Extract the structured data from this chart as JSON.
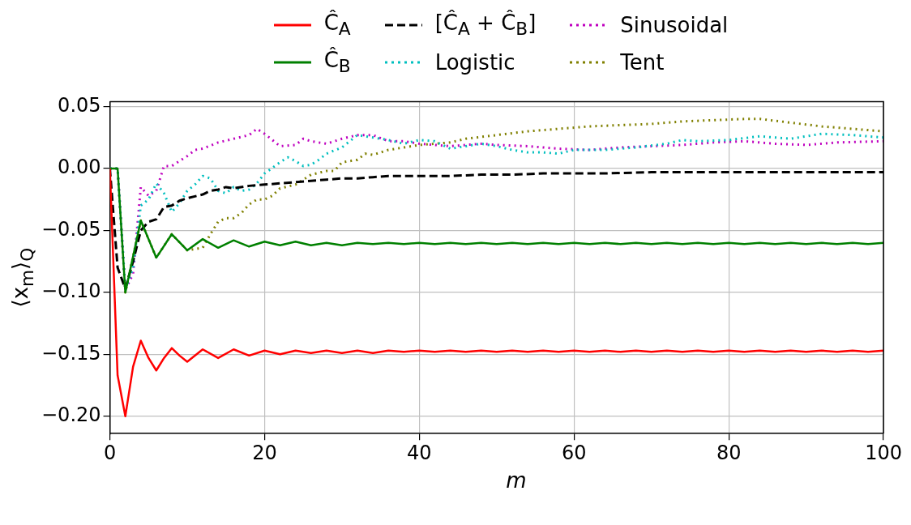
{
  "chart_data": {
    "type": "line",
    "xlabel": "m",
    "ylabel": "⟨x$_{m}$⟩$_{Q}$",
    "xlim": [
      0,
      100
    ],
    "ylim": [
      -0.214,
      0.054
    ],
    "xticks": [
      0,
      20,
      40,
      60,
      80,
      100
    ],
    "yticks": [
      {
        "value": -0.2,
        "label": "−0.20"
      },
      {
        "value": -0.15,
        "label": "−0.15"
      },
      {
        "value": -0.1,
        "label": "−0.10"
      },
      {
        "value": -0.05,
        "label": "−0.05"
      },
      {
        "value": 0,
        "label": "0.00"
      },
      {
        "value": 0.05,
        "label": "0.05"
      }
    ],
    "grid": true,
    "legend": "top",
    "marker": "none",
    "series": [
      {
        "name": "Ĉ$_{A}$",
        "color": "#ff0000",
        "line_style": "solid",
        "x": [
          0,
          1,
          2,
          3,
          4,
          5,
          6,
          7,
          8,
          9,
          10,
          12,
          14,
          16,
          18,
          20,
          22,
          24,
          26,
          28,
          30,
          32,
          34,
          36,
          38,
          40,
          42,
          44,
          46,
          48,
          50,
          52,
          54,
          56,
          58,
          60,
          62,
          64,
          66,
          68,
          70,
          72,
          74,
          76,
          78,
          80,
          82,
          84,
          86,
          88,
          90,
          92,
          94,
          96,
          98,
          100
        ],
        "values": [
          0,
          -0.167,
          -0.2,
          -0.16,
          -0.139,
          -0.153,
          -0.163,
          -0.153,
          -0.145,
          -0.151,
          -0.156,
          -0.146,
          -0.153,
          -0.146,
          -0.151,
          -0.147,
          -0.15,
          -0.147,
          -0.149,
          -0.147,
          -0.149,
          -0.147,
          -0.149,
          -0.147,
          -0.148,
          -0.147,
          -0.148,
          -0.147,
          -0.148,
          -0.147,
          -0.148,
          -0.147,
          -0.148,
          -0.147,
          -0.148,
          -0.147,
          -0.148,
          -0.147,
          -0.148,
          -0.147,
          -0.148,
          -0.147,
          -0.148,
          -0.147,
          -0.148,
          -0.147,
          -0.148,
          -0.147,
          -0.148,
          -0.147,
          -0.148,
          -0.147,
          -0.148,
          -0.147,
          -0.148,
          -0.147
        ]
      },
      {
        "name": "Ĉ$_{B}$",
        "color": "#008000",
        "line_style": "solid",
        "x": [
          0,
          1,
          2,
          4,
          6,
          8,
          10,
          12,
          14,
          16,
          18,
          20,
          22,
          24,
          26,
          28,
          30,
          32,
          34,
          36,
          38,
          40,
          42,
          44,
          46,
          48,
          50,
          52,
          54,
          56,
          58,
          60,
          62,
          64,
          66,
          68,
          70,
          72,
          74,
          76,
          78,
          80,
          82,
          84,
          86,
          88,
          90,
          92,
          94,
          96,
          98,
          100
        ],
        "values": [
          0,
          0,
          -0.1,
          -0.042,
          -0.072,
          -0.053,
          -0.066,
          -0.057,
          -0.064,
          -0.058,
          -0.063,
          -0.059,
          -0.062,
          -0.059,
          -0.062,
          -0.06,
          -0.062,
          -0.06,
          -0.061,
          -0.06,
          -0.061,
          -0.06,
          -0.061,
          -0.06,
          -0.061,
          -0.06,
          -0.061,
          -0.06,
          -0.061,
          -0.06,
          -0.061,
          -0.06,
          -0.061,
          -0.06,
          -0.061,
          -0.06,
          -0.061,
          -0.06,
          -0.061,
          -0.06,
          -0.061,
          -0.06,
          -0.061,
          -0.06,
          -0.061,
          -0.06,
          -0.061,
          -0.06,
          -0.061,
          -0.06,
          -0.061,
          -0.06
        ]
      },
      {
        "name": "[Ĉ$_{A}$ + Ĉ$_{B}$]",
        "color": "#000000",
        "line_style": "dashed",
        "x": [
          0,
          1,
          2,
          3,
          4,
          5,
          6,
          7,
          8,
          9,
          10,
          12,
          13,
          14,
          15,
          16,
          18,
          20,
          22,
          24,
          26,
          28,
          30,
          32,
          34,
          36,
          40,
          44,
          48,
          52,
          56,
          60,
          64,
          70,
          80,
          90,
          100
        ],
        "values": [
          0,
          -0.08,
          -0.097,
          -0.075,
          -0.05,
          -0.043,
          -0.041,
          -0.031,
          -0.03,
          -0.026,
          -0.024,
          -0.021,
          -0.018,
          -0.017,
          -0.015,
          -0.016,
          -0.014,
          -0.013,
          -0.012,
          -0.011,
          -0.01,
          -0.009,
          -0.008,
          -0.008,
          -0.007,
          -0.006,
          -0.006,
          -0.006,
          -0.005,
          -0.005,
          -0.004,
          -0.004,
          -0.004,
          -0.003,
          -0.003,
          -0.003,
          -0.003
        ]
      },
      {
        "name": "Logistic",
        "color": "#00bfbf",
        "line_style": "dotted",
        "x": [
          0,
          1,
          2,
          3,
          4,
          5,
          6,
          7,
          8,
          9,
          10,
          11,
          12,
          13,
          14,
          15,
          16,
          17,
          18,
          19,
          20,
          22,
          23,
          24,
          25,
          26,
          27,
          28,
          30,
          32,
          34,
          36,
          38,
          40,
          42,
          44,
          46,
          48,
          50,
          52,
          54,
          56,
          58,
          60,
          64,
          68,
          72,
          74,
          76,
          80,
          84,
          88,
          92,
          96,
          100
        ],
        "values": [
          0,
          0,
          -0.098,
          -0.08,
          -0.03,
          -0.025,
          -0.012,
          -0.02,
          -0.035,
          -0.028,
          -0.018,
          -0.013,
          -0.006,
          -0.008,
          -0.018,
          -0.02,
          -0.015,
          -0.018,
          -0.017,
          -0.012,
          -0.004,
          0.005,
          0.009,
          0.006,
          0.002,
          0.003,
          0.007,
          0.012,
          0.017,
          0.027,
          0.025,
          0.023,
          0.02,
          0.023,
          0.022,
          0.016,
          0.018,
          0.02,
          0.018,
          0.015,
          0.013,
          0.013,
          0.012,
          0.015,
          0.015,
          0.017,
          0.02,
          0.023,
          0.022,
          0.023,
          0.026,
          0.024,
          0.028,
          0.027,
          0.025
        ]
      },
      {
        "name": "Sinusoidal",
        "color": "#bf00bf",
        "line_style": "dotted",
        "x": [
          0,
          1,
          2,
          3,
          4,
          5,
          6,
          7,
          8,
          10,
          11,
          12,
          14,
          16,
          18,
          19,
          20,
          22,
          24,
          25,
          26,
          28,
          30,
          32,
          34,
          36,
          38,
          40,
          42,
          44,
          46,
          48,
          50,
          54,
          58,
          62,
          66,
          70,
          74,
          78,
          82,
          86,
          90,
          94,
          100
        ],
        "values": [
          0,
          0,
          -0.098,
          -0.085,
          -0.015,
          -0.022,
          -0.018,
          0.002,
          0.002,
          0.01,
          0.015,
          0.016,
          0.021,
          0.024,
          0.027,
          0.032,
          0.028,
          0.018,
          0.019,
          0.024,
          0.022,
          0.02,
          0.024,
          0.027,
          0.027,
          0.022,
          0.022,
          0.02,
          0.019,
          0.018,
          0.019,
          0.02,
          0.019,
          0.018,
          0.016,
          0.015,
          0.017,
          0.018,
          0.019,
          0.021,
          0.022,
          0.02,
          0.019,
          0.021,
          0.022
        ]
      },
      {
        "name": "Tent",
        "color": "#808000",
        "line_style": "dotted",
        "x": [
          0,
          1,
          2,
          4,
          6,
          8,
          10,
          12,
          13,
          14,
          15,
          16,
          17,
          18,
          19,
          20,
          21,
          22,
          24,
          26,
          28,
          29,
          30,
          32,
          33,
          34,
          36,
          38,
          40,
          44,
          46,
          50,
          54,
          58,
          62,
          66,
          70,
          74,
          78,
          82,
          84,
          88,
          92,
          96,
          100
        ],
        "values": [
          0,
          0,
          -0.1,
          -0.042,
          -0.072,
          -0.053,
          -0.066,
          -0.064,
          -0.053,
          -0.043,
          -0.04,
          -0.04,
          -0.036,
          -0.029,
          -0.025,
          -0.025,
          -0.022,
          -0.016,
          -0.013,
          -0.005,
          -0.002,
          -0.002,
          0.005,
          0.007,
          0.012,
          0.011,
          0.015,
          0.017,
          0.019,
          0.021,
          0.024,
          0.027,
          0.03,
          0.032,
          0.034,
          0.035,
          0.036,
          0.038,
          0.039,
          0.04,
          0.04,
          0.037,
          0.034,
          0.032,
          0.03
        ]
      }
    ]
  }
}
